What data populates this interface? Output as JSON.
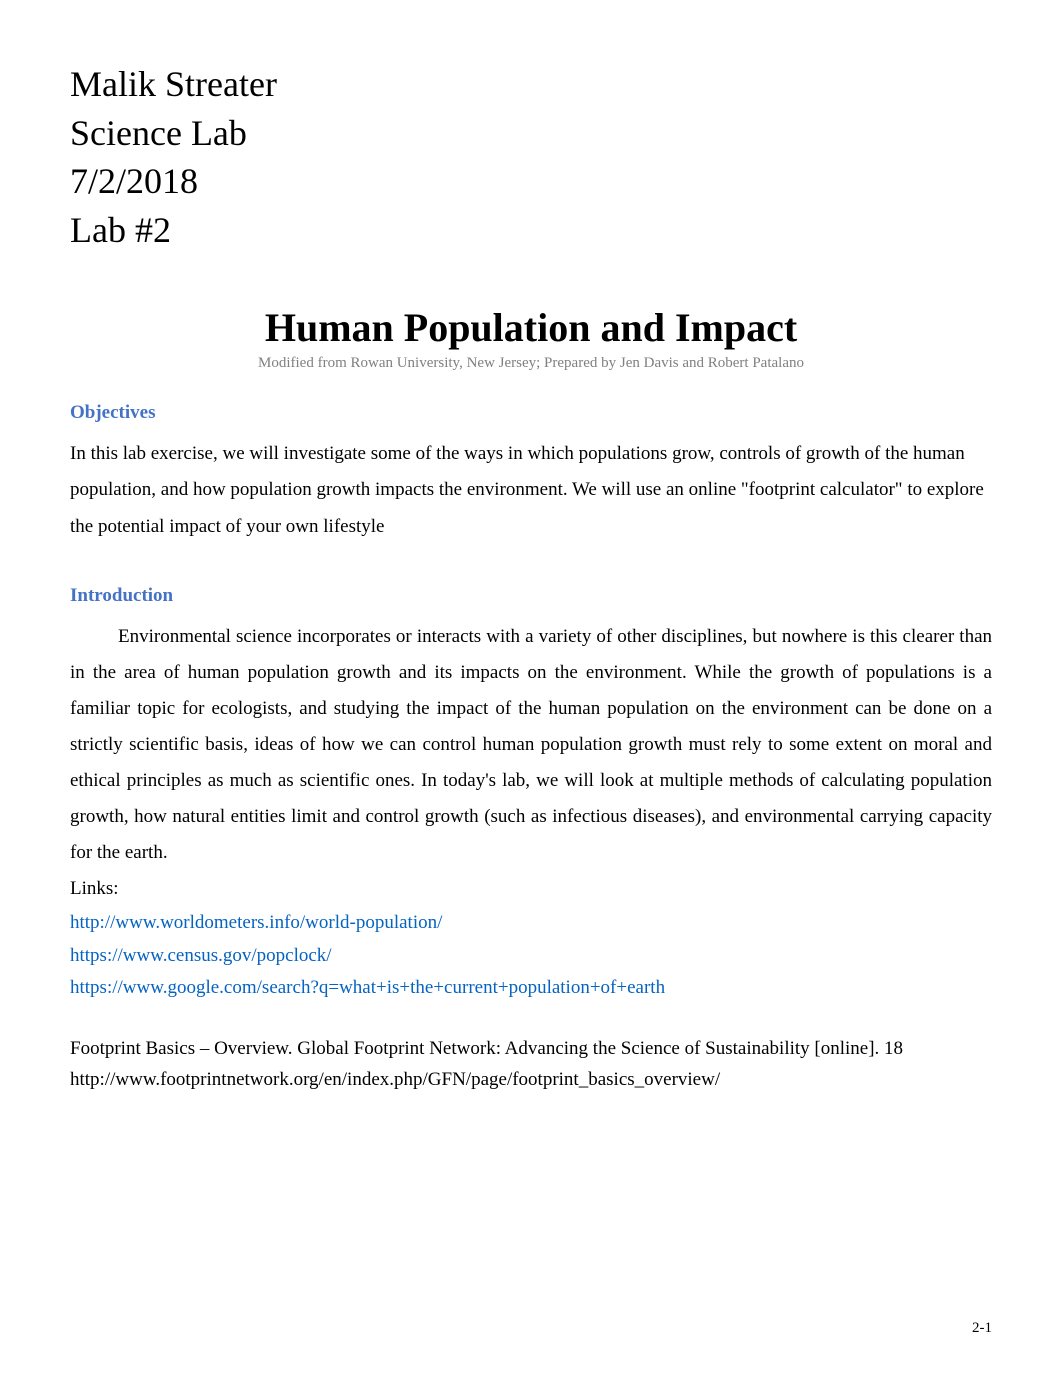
{
  "header": {
    "student_name": "Malik Streater",
    "course": "Science Lab",
    "date": "7/2/2018",
    "lab_number": "Lab #2"
  },
  "title": "Human Population and Impact",
  "attribution": "Modified from Rowan University, New Jersey; Prepared by Jen Davis and Robert Patalano",
  "objectives": {
    "heading": "Objectives",
    "text": "In this lab exercise, we will investigate some of the ways in which populations grow, controls of growth of the human population, and how population growth impacts the environment.  We will use an online \"footprint calculator\" to explore the potential impact of your own lifestyle"
  },
  "introduction": {
    "heading": "Introduction",
    "text": "Environmental science incorporates or interacts with a variety of other disciplines, but nowhere is this clearer than in the area of human population growth and its impacts on the environment.  While the growth of populations is a familiar topic for ecologists, and studying the impact of the human population on the environment can be done on a strictly scientific basis, ideas of how we can control  human population growth must rely to some extent on moral and ethical principles as much as scientific ones. In today's lab, we will look at multiple methods of calculating population growth, how natural entities limit and control growth (such as infectious diseases), and environmental carrying capacity for the earth."
  },
  "links": {
    "label": "Links:",
    "items": [
      "http://www.worldometers.info/world-population/",
      "https://www.census.gov/popclock/",
      "https://www.google.com/search?q=what+is+the+current+population+of+earth"
    ]
  },
  "footprint": {
    "line1": "Footprint Basics – Overview. Global Footprint Network: Advancing the Science of Sustainability [online]. 18",
    "line2": "http://www.footprintnetwork.org/en/index.php/GFN/page/footprint_basics_overview/"
  },
  "page_number": "2-1",
  "colors": {
    "heading_color": "#4472c4",
    "link_color": "#0563c1",
    "attribution_color": "#808080",
    "body_text_color": "#000000",
    "background_color": "#ffffff"
  },
  "typography": {
    "header_fontsize": 36,
    "title_fontsize": 40,
    "attribution_fontsize": 15,
    "heading_fontsize": 19,
    "body_fontsize": 19,
    "page_number_fontsize": 15,
    "font_family": "Times New Roman"
  }
}
